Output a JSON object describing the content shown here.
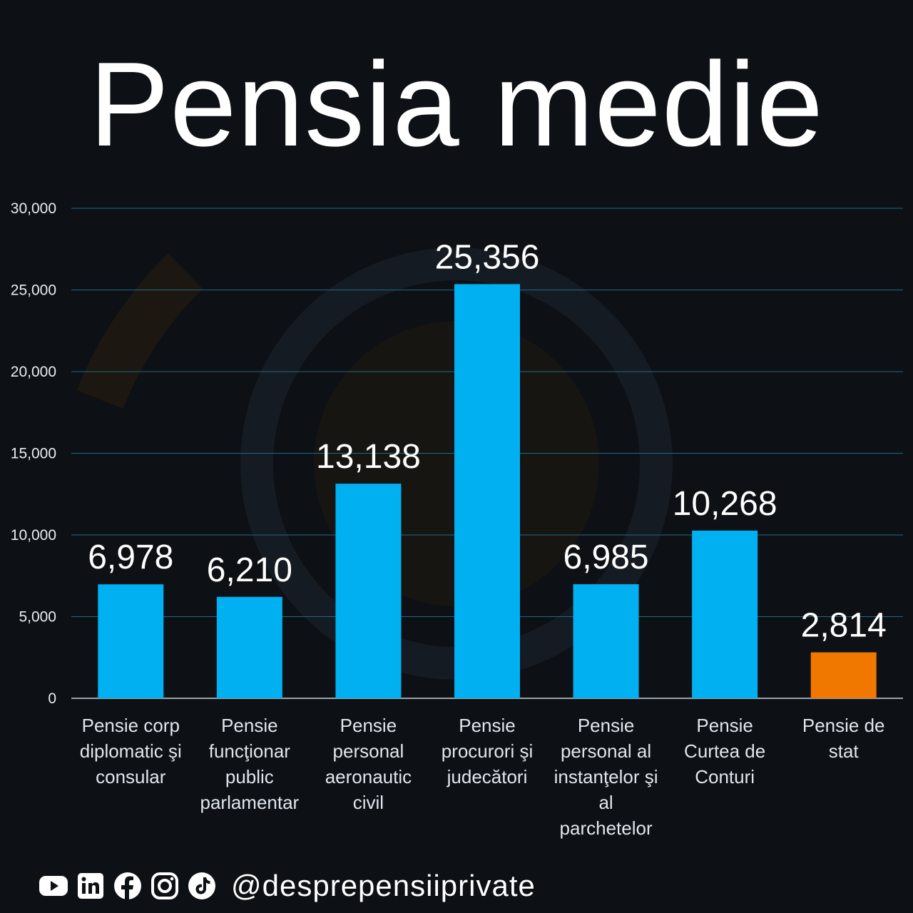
{
  "title": "Pensia medie",
  "colors": {
    "background": "#0d1014",
    "bar_default": "#00b0f0",
    "bar_highlight": "#f07800",
    "grid": "#1d6a86"
  },
  "footer": {
    "icons": [
      "youtube-icon",
      "linkedin-icon",
      "facebook-icon",
      "instagram-icon",
      "tiktok-icon"
    ],
    "handle": "@desprepensiiprivate"
  },
  "chart_data": {
    "type": "bar",
    "title": "Pensia medie",
    "xlabel": "",
    "ylabel": "",
    "ylim": [
      0,
      30000
    ],
    "yticks": [
      "0",
      "5,000",
      "10,000",
      "15,000",
      "20,000",
      "25,000",
      "30,000"
    ],
    "grid": true,
    "legend": "none",
    "categories": [
      [
        "Pensie corp",
        "diplomatic şi",
        "consular"
      ],
      [
        "Pensie",
        "funcţionar",
        "public",
        "parlamentar"
      ],
      [
        "Pensie",
        "personal",
        "aeronautic",
        "civil"
      ],
      [
        "Pensie",
        "procurori şi",
        "judecători"
      ],
      [
        "Pensie",
        "personal al",
        "instanţelor şi",
        "al",
        "parchetelor"
      ],
      [
        "Pensie",
        "Curtea de",
        "Conturi"
      ],
      [
        "Pensie de",
        "stat"
      ]
    ],
    "values": [
      6978,
      6210,
      13138,
      25356,
      6985,
      10268,
      2814
    ],
    "value_labels": [
      "6,978",
      "6,210",
      "13,138",
      "25,356",
      "6,985",
      "10,268",
      "2,814"
    ],
    "highlight_index": 6
  }
}
